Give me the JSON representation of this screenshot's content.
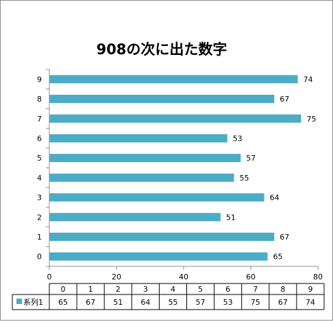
{
  "chart_data": {
    "type": "bar",
    "orientation": "horizontal",
    "title": "908の次に出た数字",
    "categories": [
      "0",
      "1",
      "2",
      "3",
      "4",
      "5",
      "6",
      "7",
      "8",
      "9"
    ],
    "series": [
      {
        "name": "系列1",
        "values": [
          65,
          67,
          51,
          64,
          55,
          57,
          53,
          75,
          67,
          74
        ]
      }
    ],
    "xlim": [
      0,
      80
    ],
    "x_ticks": [
      0,
      20,
      40,
      60,
      80
    ],
    "grid": false,
    "legend": "data-table-left",
    "data_table": true,
    "bar_color": "#4bacc6"
  }
}
